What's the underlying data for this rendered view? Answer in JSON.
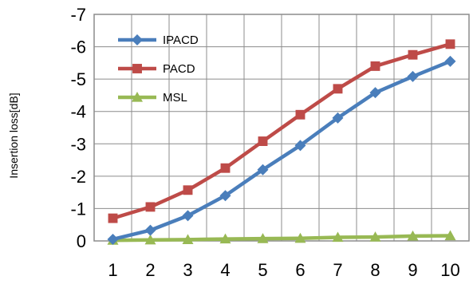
{
  "chart_data": {
    "type": "line",
    "title": "",
    "xlabel": "",
    "ylabel": "Insertion loss[dB]",
    "x": [
      1,
      2,
      3,
      4,
      5,
      6,
      7,
      8,
      9,
      10
    ],
    "xticks": [
      "1",
      "2",
      "3",
      "4",
      "5",
      "6",
      "7",
      "8",
      "9",
      "10"
    ],
    "ylim": [
      0,
      -7
    ],
    "yticks": [
      0,
      -1,
      -2,
      -3,
      -4,
      -5,
      -6,
      -7
    ],
    "ytick_labels": [
      "0",
      "-1",
      "-2",
      "-3",
      "-4",
      "-5",
      "-6",
      "-7"
    ],
    "grid": true,
    "legend_position": "top-left",
    "series": [
      {
        "name": "IPACD",
        "color": "#4a7ebb",
        "marker": "diamond",
        "values": [
          -0.05,
          -0.33,
          -0.78,
          -1.4,
          -2.2,
          -2.95,
          -3.8,
          -4.58,
          -5.08,
          -5.55
        ]
      },
      {
        "name": "PACD",
        "color": "#be4b48",
        "marker": "square",
        "values": [
          -0.7,
          -1.05,
          -1.57,
          -2.25,
          -3.08,
          -3.9,
          -4.7,
          -5.4,
          -5.75,
          -6.08
        ]
      },
      {
        "name": "MSL",
        "color": "#98b954",
        "marker": "triangle",
        "values": [
          -0.02,
          -0.03,
          -0.04,
          -0.06,
          -0.07,
          -0.08,
          -0.11,
          -0.12,
          -0.15,
          -0.16
        ]
      }
    ]
  }
}
